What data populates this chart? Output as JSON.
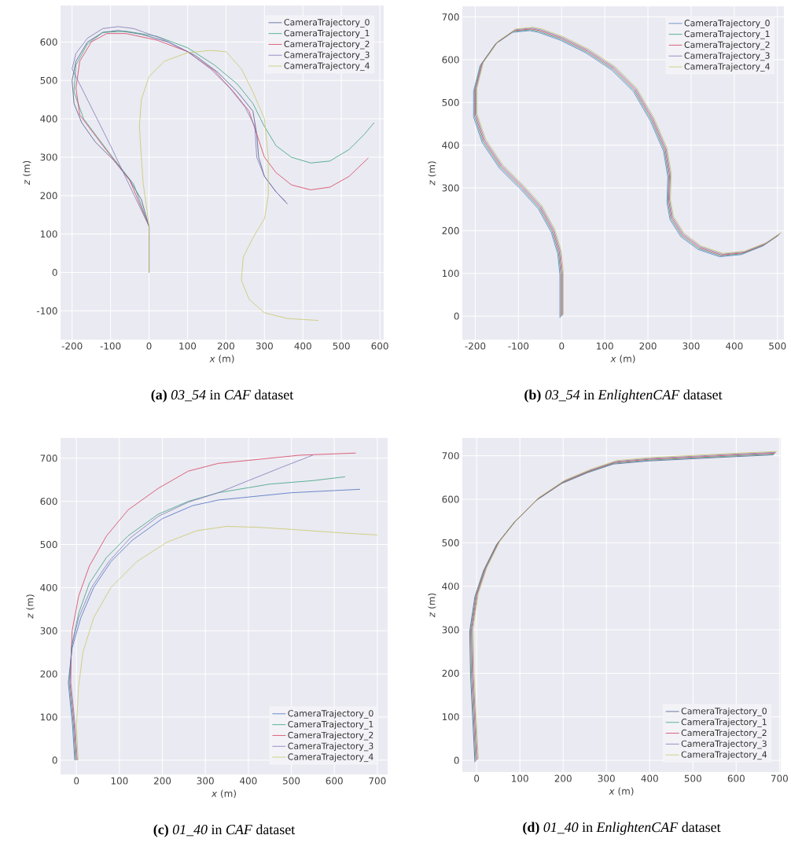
{
  "chart_data": [
    {
      "type": "line",
      "title": "**(a)** *03_54* in *CAF* dataset",
      "xlabel": "*x* (m)",
      "ylabel": "*z* (m)",
      "xlim": [
        -230,
        610
      ],
      "ylim": [
        -175,
        695
      ],
      "xticks": [
        -200,
        -100,
        0,
        100,
        200,
        300,
        400,
        500,
        600
      ],
      "yticks": [
        -100,
        0,
        100,
        200,
        300,
        400,
        500,
        600
      ],
      "grid": true,
      "legend": "top right",
      "series": [
        {
          "name": "CameraTrajectory_0",
          "color": "#4c5a8c",
          "x": [
            0,
            0,
            -20,
            -50,
            -90,
            -140,
            -175,
            -195,
            -200,
            -190,
            -160,
            -120,
            -80,
            -20,
            50,
            120,
            180,
            230,
            270,
            280,
            285,
            300,
            330,
            360
          ],
          "values": [
            0,
            120,
            190,
            240,
            290,
            340,
            390,
            440,
            500,
            550,
            600,
            625,
            630,
            620,
            600,
            565,
            520,
            470,
            420,
            360,
            300,
            250,
            210,
            178
          ]
        },
        {
          "name": "CameraTrajectory_1",
          "color": "#3aa17e",
          "x": [
            0,
            0,
            -40,
            -110,
            -170,
            -195,
            -190,
            -160,
            -120,
            -60,
            20,
            100,
            170,
            230,
            270,
            300,
            330,
            370,
            420,
            470,
            520,
            560,
            585
          ],
          "values": [
            0,
            120,
            230,
            320,
            400,
            470,
            540,
            595,
            625,
            628,
            615,
            585,
            540,
            490,
            440,
            380,
            330,
            300,
            285,
            290,
            320,
            360,
            390
          ]
        },
        {
          "name": "CameraTrajectory_2",
          "color": "#d6405b",
          "x": [
            0,
            0,
            -50,
            -120,
            -180,
            -190,
            -180,
            -150,
            -110,
            -60,
            20,
            100,
            170,
            220,
            260,
            280,
            300,
            330,
            370,
            420,
            470,
            520,
            570
          ],
          "values": [
            0,
            120,
            240,
            330,
            410,
            480,
            550,
            600,
            622,
            622,
            605,
            575,
            525,
            470,
            420,
            360,
            300,
            260,
            228,
            215,
            222,
            250,
            298
          ]
        },
        {
          "name": "CameraTrajectory_3",
          "color": "#8078b8",
          "x": [
            0,
            0,
            -100,
            -200,
            -190,
            -160,
            -120,
            -80,
            -40,
            30,
            100,
            160,
            210,
            250,
            275,
            280,
            300,
            330,
            355
          ],
          "values": [
            0,
            120,
            330,
            530,
            570,
            610,
            635,
            640,
            635,
            610,
            575,
            530,
            480,
            430,
            380,
            300,
            250,
            210,
            185
          ]
        },
        {
          "name": "CameraTrajectory_4",
          "color": "#c8c86a",
          "x": [
            0,
            0,
            -5,
            -15,
            -20,
            -25,
            -20,
            0,
            40,
            100,
            160,
            200,
            240,
            270,
            300,
            310,
            310,
            300,
            270,
            245,
            240,
            260,
            300,
            360,
            440
          ],
          "values": [
            0,
            120,
            160,
            230,
            300,
            380,
            450,
            510,
            550,
            572,
            578,
            575,
            530,
            470,
            400,
            300,
            200,
            140,
            90,
            40,
            -20,
            -70,
            -105,
            -120,
            -125
          ]
        }
      ]
    },
    {
      "type": "line",
      "title": "**(b)** *03_54* in *EnlightenCAF* dataset",
      "xlabel": "*x* (m)",
      "ylabel": "*z* (m)",
      "xlim": [
        -230,
        515
      ],
      "ylim": [
        -55,
        725
      ],
      "xticks": [
        -200,
        -100,
        0,
        100,
        200,
        300,
        400,
        500
      ],
      "yticks": [
        0,
        100,
        200,
        300,
        400,
        500,
        600,
        700
      ],
      "grid": true,
      "legend": "top right",
      "series": [
        {
          "name": "CameraTrajectory_0",
          "color": "#5b7fc4",
          "x": [
            -4,
            -4,
            -9,
            -24,
            -54,
            -94,
            -144,
            -184,
            -204,
            -204,
            -189,
            -154,
            -114,
            -74,
            -54,
            -4,
            56,
            116,
            166,
            206,
            236,
            246,
            244,
            251,
            276,
            316,
            366,
            416,
            466,
            501
          ],
          "values": [
            -4,
            96,
            146,
            196,
            251,
            296,
            346,
            406,
            466,
            526,
            586,
            636,
            664,
            668,
            664,
            646,
            616,
            576,
            526,
            456,
            386,
            326,
            266,
            226,
            186,
            156,
            139,
            144,
            164,
            188
          ]
        },
        {
          "name": "CameraTrajectory_1",
          "color": "#3aa17e",
          "x": [
            -2,
            -2,
            -7,
            -22,
            -52,
            -92,
            -142,
            -182,
            -202,
            -202,
            -187,
            -152,
            -112,
            -72,
            -52,
            -2,
            58,
            118,
            168,
            208,
            238,
            248,
            246,
            253,
            278,
            318,
            368,
            418,
            468,
            503
          ],
          "values": [
            -2,
            98,
            148,
            198,
            253,
            298,
            348,
            408,
            468,
            528,
            588,
            638,
            666,
            670,
            666,
            648,
            618,
            578,
            528,
            458,
            388,
            328,
            268,
            228,
            188,
            158,
            141,
            146,
            166,
            190
          ]
        },
        {
          "name": "CameraTrajectory_2",
          "color": "#d6405b",
          "x": [
            0,
            0,
            -5,
            -20,
            -50,
            -90,
            -140,
            -180,
            -200,
            -200,
            -185,
            -150,
            -110,
            -70,
            -50,
            0,
            60,
            120,
            170,
            210,
            240,
            250,
            248,
            255,
            280,
            320,
            370,
            420,
            470,
            505
          ],
          "values": [
            0,
            100,
            150,
            200,
            255,
            300,
            350,
            410,
            470,
            530,
            590,
            640,
            668,
            672,
            668,
            650,
            620,
            580,
            530,
            460,
            390,
            330,
            270,
            230,
            190,
            160,
            143,
            148,
            168,
            192
          ]
        },
        {
          "name": "CameraTrajectory_3",
          "color": "#8078b8",
          "x": [
            2,
            2,
            -3,
            -18,
            -48,
            -88,
            -138,
            -178,
            -198,
            -198,
            -183,
            -148,
            -108,
            -68,
            -48,
            2,
            62,
            122,
            172,
            212,
            242,
            252,
            250,
            257,
            282,
            322,
            372,
            422,
            472,
            507
          ],
          "values": [
            2,
            102,
            152,
            202,
            257,
            302,
            352,
            412,
            472,
            532,
            592,
            642,
            670,
            674,
            670,
            652,
            622,
            582,
            532,
            462,
            392,
            332,
            272,
            232,
            192,
            162,
            145,
            150,
            170,
            194
          ]
        },
        {
          "name": "CameraTrajectory_4",
          "color": "#c8c86a",
          "x": [
            4,
            4,
            -1,
            -16,
            -46,
            -86,
            -136,
            -176,
            -196,
            -196,
            -181,
            -146,
            -106,
            -66,
            -46,
            4,
            64,
            124,
            174,
            214,
            244,
            254,
            252,
            259,
            284,
            324,
            374,
            424,
            474,
            509
          ],
          "values": [
            4,
            104,
            154,
            204,
            259,
            304,
            354,
            414,
            474,
            534,
            594,
            644,
            672,
            676,
            672,
            654,
            624,
            584,
            534,
            464,
            394,
            334,
            274,
            234,
            194,
            164,
            147,
            152,
            172,
            196
          ]
        }
      ]
    },
    {
      "type": "line",
      "title": "**(c)** *01_40* in *CAF* dataset",
      "xlabel": "*x* (m)",
      "ylabel": "*z* (m)",
      "xlim": [
        -37,
        724
      ],
      "ylim": [
        -33,
        747
      ],
      "xticks": [
        0,
        100,
        200,
        300,
        400,
        500,
        600,
        700
      ],
      "yticks": [
        0,
        100,
        200,
        300,
        400,
        500,
        600,
        700
      ],
      "grid": true,
      "legend": "bottom right",
      "series": [
        {
          "name": "CameraTrajectory_0",
          "color": "#4a6fc0",
          "x": [
            -4,
            -9,
            -19,
            -10,
            10,
            40,
            80,
            130,
            200,
            270,
            330,
            400,
            500,
            600,
            660
          ],
          "values": [
            0,
            80,
            180,
            260,
            330,
            400,
            460,
            510,
            560,
            590,
            603,
            610,
            620,
            625,
            628
          ]
        },
        {
          "name": "CameraTrajectory_1",
          "color": "#3aa17e",
          "x": [
            -2,
            -7,
            -17,
            -10,
            5,
            30,
            70,
            120,
            190,
            260,
            330,
            450,
            550,
            625
          ],
          "values": [
            0,
            80,
            180,
            270,
            340,
            410,
            470,
            520,
            570,
            600,
            620,
            640,
            648,
            657
          ]
        },
        {
          "name": "CameraTrajectory_2",
          "color": "#d6405b",
          "x": [
            0,
            -5,
            -15,
            -10,
            5,
            30,
            70,
            120,
            190,
            260,
            330,
            420,
            520,
            650
          ],
          "values": [
            0,
            80,
            180,
            300,
            380,
            450,
            520,
            580,
            630,
            670,
            688,
            697,
            707,
            712
          ]
        },
        {
          "name": "CameraTrajectory_3",
          "color": "#8078b8",
          "x": [
            2,
            -3,
            -13,
            -12,
            5,
            35,
            75,
            125,
            190,
            260,
            330,
            400,
            480,
            550
          ],
          "values": [
            0,
            80,
            180,
            260,
            330,
            400,
            460,
            515,
            565,
            598,
            620,
            648,
            680,
            707
          ]
        },
        {
          "name": "CameraTrajectory_4",
          "color": "#c8c86a",
          "x": [
            4,
            0,
            5,
            15,
            40,
            80,
            140,
            210,
            280,
            350,
            420,
            500,
            600,
            700
          ],
          "values": [
            0,
            80,
            170,
            250,
            330,
            400,
            460,
            505,
            532,
            542,
            540,
            535,
            528,
            522
          ]
        }
      ]
    },
    {
      "type": "line",
      "title": "**(d)** *01_40* in *EnlightenCAF* dataset",
      "xlabel": "*x* (m)",
      "ylabel": "*z* (m)",
      "xlim": [
        -33,
        703
      ],
      "ylim": [
        -27,
        741
      ],
      "xticks": [
        0,
        100,
        200,
        300,
        400,
        500,
        600,
        700
      ],
      "yticks": [
        0,
        100,
        200,
        300,
        400,
        500,
        600,
        700
      ],
      "grid": true,
      "legend": "bottom right",
      "series": [
        {
          "name": "CameraTrajectory_0",
          "color": "#4c5a8c",
          "x": [
            -4,
            -9,
            -14,
            -16,
            -4,
            16,
            46,
            86,
            136,
            196,
            256,
            316,
            396,
            496,
            596,
            686
          ],
          "values": [
            -4,
            96,
            196,
            296,
            376,
            436,
            496,
            546,
            596,
            636,
            661,
            681,
            688,
            693,
            698,
            702
          ]
        },
        {
          "name": "CameraTrajectory_1",
          "color": "#3aa17e",
          "x": [
            -2,
            -7,
            -12,
            -14,
            -2,
            18,
            48,
            88,
            138,
            198,
            258,
            318,
            398,
            498,
            598,
            688
          ],
          "values": [
            -2,
            98,
            198,
            298,
            378,
            438,
            498,
            548,
            598,
            638,
            663,
            683,
            690,
            695,
            700,
            704
          ]
        },
        {
          "name": "CameraTrajectory_2",
          "color": "#d6405b",
          "x": [
            0,
            -5,
            -10,
            -12,
            0,
            20,
            50,
            90,
            140,
            200,
            260,
            320,
            400,
            500,
            600,
            690
          ],
          "values": [
            0,
            100,
            200,
            300,
            380,
            440,
            500,
            550,
            600,
            640,
            665,
            685,
            692,
            697,
            702,
            706
          ]
        },
        {
          "name": "CameraTrajectory_3",
          "color": "#8078b8",
          "x": [
            2,
            -3,
            -8,
            -10,
            2,
            22,
            52,
            92,
            142,
            202,
            262,
            322,
            402,
            502,
            602,
            692
          ],
          "values": [
            2,
            102,
            202,
            302,
            382,
            442,
            502,
            552,
            602,
            642,
            667,
            687,
            694,
            699,
            704,
            708
          ]
        },
        {
          "name": "CameraTrajectory_4",
          "color": "#c8c86a",
          "x": [
            4,
            -1,
            -6,
            -8,
            4,
            24,
            54,
            94,
            144,
            204,
            264,
            324,
            404,
            504,
            604,
            694
          ],
          "values": [
            4,
            104,
            204,
            304,
            384,
            444,
            504,
            554,
            604,
            644,
            669,
            689,
            696,
            701,
            706,
            710
          ]
        }
      ]
    }
  ]
}
